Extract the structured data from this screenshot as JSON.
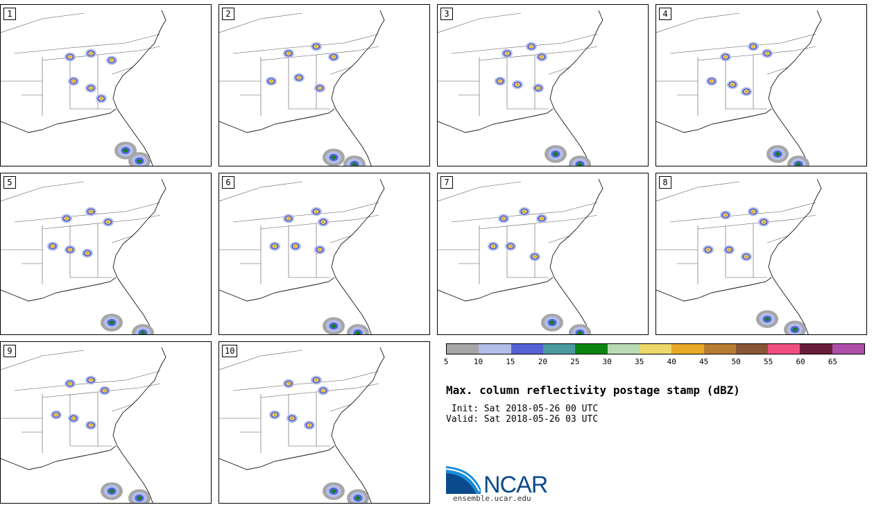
{
  "panels": [
    {
      "label": "1",
      "blobs": [
        [
          100,
          75
        ],
        [
          130,
          70
        ],
        [
          160,
          80
        ],
        [
          105,
          110
        ],
        [
          130,
          120
        ],
        [
          145,
          135
        ],
        [
          180,
          210
        ],
        [
          200,
          225
        ]
      ]
    },
    {
      "label": "2",
      "blobs": [
        [
          100,
          70
        ],
        [
          140,
          60
        ],
        [
          165,
          75
        ],
        [
          75,
          110
        ],
        [
          115,
          105
        ],
        [
          145,
          120
        ],
        [
          165,
          220
        ],
        [
          195,
          230
        ]
      ]
    },
    {
      "label": "3",
      "blobs": [
        [
          100,
          70
        ],
        [
          135,
          60
        ],
        [
          150,
          75
        ],
        [
          90,
          110
        ],
        [
          115,
          115
        ],
        [
          145,
          120
        ],
        [
          170,
          215
        ],
        [
          205,
          230
        ]
      ]
    },
    {
      "label": "4",
      "blobs": [
        [
          100,
          75
        ],
        [
          140,
          60
        ],
        [
          160,
          70
        ],
        [
          80,
          110
        ],
        [
          110,
          115
        ],
        [
          130,
          125
        ],
        [
          175,
          215
        ],
        [
          205,
          230
        ]
      ]
    },
    {
      "label": "5",
      "blobs": [
        [
          95,
          65
        ],
        [
          130,
          55
        ],
        [
          155,
          70
        ],
        [
          75,
          105
        ],
        [
          100,
          110
        ],
        [
          125,
          115
        ],
        [
          160,
          215
        ],
        [
          205,
          230
        ]
      ]
    },
    {
      "label": "6",
      "blobs": [
        [
          100,
          65
        ],
        [
          140,
          55
        ],
        [
          150,
          70
        ],
        [
          80,
          105
        ],
        [
          110,
          105
        ],
        [
          145,
          110
        ],
        [
          165,
          220
        ],
        [
          200,
          230
        ]
      ]
    },
    {
      "label": "7",
      "blobs": [
        [
          95,
          65
        ],
        [
          125,
          55
        ],
        [
          150,
          65
        ],
        [
          80,
          105
        ],
        [
          105,
          105
        ],
        [
          140,
          120
        ],
        [
          165,
          215
        ],
        [
          205,
          230
        ]
      ]
    },
    {
      "label": "8",
      "blobs": [
        [
          100,
          60
        ],
        [
          140,
          55
        ],
        [
          155,
          70
        ],
        [
          75,
          110
        ],
        [
          105,
          110
        ],
        [
          130,
          120
        ],
        [
          160,
          210
        ],
        [
          200,
          225
        ]
      ]
    },
    {
      "label": "9",
      "blobs": [
        [
          100,
          60
        ],
        [
          130,
          55
        ],
        [
          150,
          70
        ],
        [
          80,
          105
        ],
        [
          105,
          110
        ],
        [
          130,
          120
        ],
        [
          160,
          215
        ],
        [
          200,
          225
        ]
      ]
    },
    {
      "label": "10",
      "blobs": [
        [
          100,
          60
        ],
        [
          140,
          55
        ],
        [
          150,
          70
        ],
        [
          80,
          105
        ],
        [
          105,
          110
        ],
        [
          130,
          120
        ],
        [
          165,
          215
        ],
        [
          200,
          225
        ]
      ]
    }
  ],
  "colorbar": {
    "colors": [
      "#a6a6a6",
      "#b3bde8",
      "#5562d6",
      "#4a9aa0",
      "#0b8412",
      "#b9dbb4",
      "#ecd96a",
      "#e8aa27",
      "#b87d32",
      "#8a5636",
      "#ee4f7f",
      "#6a1c3b",
      "#ad4fa8"
    ],
    "ticks": [
      "5",
      "10",
      "15",
      "20",
      "25",
      "30",
      "35",
      "40",
      "45",
      "50",
      "55",
      "60",
      "65"
    ]
  },
  "title": "Max. column reflectivity postage stamp (dBZ)",
  "init_line": " Init: Sat 2018-05-26 00 UTC",
  "valid_line": "Valid: Sat 2018-05-26 03 UTC",
  "logo": {
    "text": "NCAR",
    "color": "#0b4a8b"
  },
  "url": "ensemble.ucar.edu"
}
